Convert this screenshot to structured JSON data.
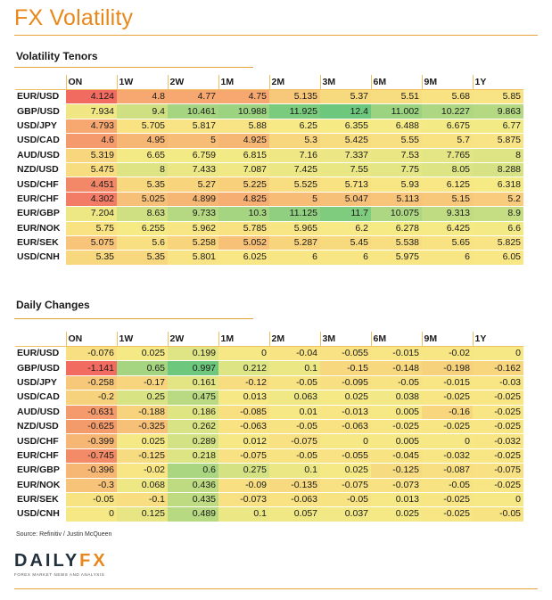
{
  "title": "FX Volatility",
  "tenors_section": {
    "heading": "Volatility Tenors",
    "columns": [
      "",
      "ON",
      "1W",
      "2W",
      "1M",
      "2M",
      "3M",
      "6M",
      "9M",
      "1Y"
    ],
    "rows": [
      {
        "pair": "EUR/USD",
        "values": [
          "4.124",
          "4.8",
          "4.77",
          "4.75",
          "5.135",
          "5.37",
          "5.51",
          "5.68",
          "5.85"
        ],
        "colors": [
          "#f26b60",
          "#f6a870",
          "#f6a870",
          "#f6a870",
          "#f7c87a",
          "#f8da7e",
          "#f8dc80",
          "#f8e282",
          "#f8e484"
        ]
      },
      {
        "pair": "GBP/USD",
        "values": [
          "7.934",
          "9.4",
          "10.461",
          "10.988",
          "11.925",
          "12.4",
          "11.002",
          "10.227",
          "9.863"
        ],
        "colors": [
          "#f0e684",
          "#cfe083",
          "#a6d581",
          "#9bd380",
          "#7acb7e",
          "#6dc77d",
          "#9bd380",
          "#add782",
          "#b5d982"
        ]
      },
      {
        "pair": "USD/JPY",
        "values": [
          "4.793",
          "5.705",
          "5.817",
          "5.88",
          "6.25",
          "6.355",
          "6.488",
          "6.675",
          "6.77"
        ],
        "colors": [
          "#f6a870",
          "#f8e282",
          "#f8e484",
          "#f8e484",
          "#f7e985",
          "#f6ea85",
          "#f5ea85",
          "#f3ea85",
          "#f2ea85"
        ]
      },
      {
        "pair": "USD/CAD",
        "values": [
          "4.6",
          "4.95",
          "5",
          "4.925",
          "5.3",
          "5.425",
          "5.55",
          "5.7",
          "5.875"
        ],
        "colors": [
          "#f59a6c",
          "#f6b674",
          "#f7bc76",
          "#f6b674",
          "#f8d67e",
          "#f8dc80",
          "#f8e082",
          "#f8e282",
          "#f8e484"
        ]
      },
      {
        "pair": "AUD/USD",
        "values": [
          "5.319",
          "6.65",
          "6.759",
          "6.815",
          "7.16",
          "7.337",
          "7.53",
          "7.765",
          "8"
        ],
        "colors": [
          "#f8d67e",
          "#f3ea85",
          "#f2ea85",
          "#f2ea85",
          "#eee784",
          "#ece784",
          "#eae684",
          "#e4e584",
          "#dee484"
        ]
      },
      {
        "pair": "NZD/USD",
        "values": [
          "5.475",
          "8",
          "7.433",
          "7.087",
          "7.425",
          "7.55",
          "7.75",
          "8.05",
          "8.288"
        ],
        "colors": [
          "#f8dc80",
          "#dee484",
          "#ebe784",
          "#efe884",
          "#ebe784",
          "#e9e684",
          "#e4e584",
          "#dde484",
          "#d6e284"
        ]
      },
      {
        "pair": "USD/CHF",
        "values": [
          "4.451",
          "5.35",
          "5.27",
          "5.225",
          "5.525",
          "5.713",
          "5.93",
          "6.125",
          "6.318"
        ],
        "colors": [
          "#f38868",
          "#f8d87e",
          "#f8d47c",
          "#f8d07c",
          "#f8de80",
          "#f8e282",
          "#f8e584",
          "#f8e784",
          "#f6ea85"
        ]
      },
      {
        "pair": "EUR/CHF",
        "values": [
          "4.302",
          "5.025",
          "4.899",
          "4.825",
          "5",
          "5.047",
          "5.113",
          "5.15",
          "5.2"
        ],
        "colors": [
          "#f27c65",
          "#f7c078",
          "#f6b674",
          "#f6ae72",
          "#f7bc76",
          "#f7c078",
          "#f7c47a",
          "#f7c87a",
          "#f8cc7c"
        ]
      },
      {
        "pair": "EUR/GBP",
        "values": [
          "7.204",
          "8.63",
          "9.733",
          "10.3",
          "11.125",
          "11.7",
          "10.075",
          "9.313",
          "8.9"
        ],
        "colors": [
          "#ede784",
          "#cfe083",
          "#b5d982",
          "#a6d581",
          "#8fcf7f",
          "#7fcc7e",
          "#add782",
          "#bfdc83",
          "#c6de83"
        ]
      },
      {
        "pair": "EUR/NOK",
        "values": [
          "5.75",
          "6.255",
          "5.962",
          "5.785",
          "5.965",
          "6.2",
          "6.278",
          "6.425",
          "6.6"
        ],
        "colors": [
          "#f8e282",
          "#f6ea85",
          "#f8e684",
          "#f8e282",
          "#f8e684",
          "#f7e985",
          "#f6ea85",
          "#f5ea85",
          "#f3ea85"
        ]
      },
      {
        "pair": "EUR/SEK",
        "values": [
          "5.075",
          "5.6",
          "5.258",
          "5.052",
          "5.287",
          "5.45",
          "5.538",
          "5.65",
          "5.825"
        ],
        "colors": [
          "#f7c47a",
          "#f8e082",
          "#f8d47c",
          "#f7c278",
          "#f8d47c",
          "#f8da7e",
          "#f8de80",
          "#f8e282",
          "#f8e484"
        ]
      },
      {
        "pair": "USD/CNH",
        "values": [
          "5.35",
          "5.35",
          "5.801",
          "6.025",
          "6",
          "6",
          "5.975",
          "6",
          "6.05"
        ],
        "colors": [
          "#f8d87e",
          "#f8d87e",
          "#f8e484",
          "#f8e784",
          "#f8e684",
          "#f8e684",
          "#f8e684",
          "#f8e684",
          "#f8e784"
        ]
      }
    ]
  },
  "changes_section": {
    "heading": "Daily Changes",
    "columns": [
      "",
      "ON",
      "1W",
      "2W",
      "1M",
      "2M",
      "3M",
      "6M",
      "9M",
      "1Y"
    ],
    "rows": [
      {
        "pair": "EUR/USD",
        "values": [
          "-0.076",
          "0.025",
          "0.199",
          "0",
          "-0.04",
          "-0.055",
          "-0.015",
          "-0.02",
          "0"
        ],
        "colors": [
          "#f8e082",
          "#f4e985",
          "#dfe484",
          "#f6e885",
          "#f8e483",
          "#f8e283",
          "#f8e684",
          "#f8e584",
          "#f6e885"
        ]
      },
      {
        "pair": "GBP/USD",
        "values": [
          "-1.141",
          "0.65",
          "0.997",
          "0.212",
          "0.1",
          "-0.15",
          "-0.148",
          "-0.198",
          "-0.162"
        ],
        "colors": [
          "#f26b60",
          "#a6d581",
          "#6dc77d",
          "#dde484",
          "#ebe784",
          "#f7d87f",
          "#f7d87f",
          "#f7d27d",
          "#f7d67e"
        ]
      },
      {
        "pair": "USD/JPY",
        "values": [
          "-0.258",
          "-0.17",
          "0.161",
          "-0.12",
          "-0.05",
          "-0.095",
          "-0.05",
          "-0.015",
          "-0.03"
        ],
        "colors": [
          "#f7c87a",
          "#f7d57e",
          "#e3e584",
          "#f8dc80",
          "#f8e383",
          "#f8df81",
          "#f8e383",
          "#f8e684",
          "#f8e584"
        ]
      },
      {
        "pair": "USD/CAD",
        "values": [
          "-0.2",
          "0.25",
          "0.475",
          "0.013",
          "0.063",
          "0.025",
          "0.038",
          "-0.025",
          "-0.025"
        ],
        "colors": [
          "#f7d27d",
          "#d8e384",
          "#b9da82",
          "#f5e885",
          "#efe884",
          "#f4e985",
          "#f2e885",
          "#f8e584",
          "#f8e584"
        ]
      },
      {
        "pair": "AUD/USD",
        "values": [
          "-0.631",
          "-0.188",
          "0.186",
          "-0.085",
          "0.01",
          "-0.013",
          "0.005",
          "-0.16",
          "-0.025"
        ],
        "colors": [
          "#f49a6c",
          "#f7d37d",
          "#e0e584",
          "#f8e081",
          "#f5e885",
          "#f8e684",
          "#f6e885",
          "#f7d67e",
          "#f8e584"
        ]
      },
      {
        "pair": "NZD/USD",
        "values": [
          "-0.625",
          "-0.325",
          "0.262",
          "-0.063",
          "-0.05",
          "-0.063",
          "-0.025",
          "-0.025",
          "-0.025"
        ],
        "colors": [
          "#f49b6c",
          "#f7c078",
          "#d7e384",
          "#f8e282",
          "#f8e383",
          "#f8e282",
          "#f8e584",
          "#f8e584",
          "#f8e584"
        ]
      },
      {
        "pair": "USD/CHF",
        "values": [
          "-0.399",
          "0.025",
          "0.289",
          "0.012",
          "-0.075",
          "0",
          "0.005",
          "0",
          "-0.032"
        ],
        "colors": [
          "#f6b674",
          "#f4e985",
          "#d3e284",
          "#f5e885",
          "#f8e182",
          "#f6e885",
          "#f6e885",
          "#f6e885",
          "#f8e584"
        ]
      },
      {
        "pair": "EUR/CHF",
        "values": [
          "-0.745",
          "-0.125",
          "0.218",
          "-0.075",
          "-0.05",
          "-0.055",
          "-0.045",
          "-0.032",
          "-0.025"
        ],
        "colors": [
          "#f38b68",
          "#f7db80",
          "#dce484",
          "#f8e182",
          "#f8e383",
          "#f8e283",
          "#f8e383",
          "#f8e584",
          "#f8e584"
        ]
      },
      {
        "pair": "EUR/GBP",
        "values": [
          "-0.396",
          "-0.02",
          "0.6",
          "0.275",
          "0.1",
          "0.025",
          "-0.125",
          "-0.087",
          "-0.075"
        ],
        "colors": [
          "#f6b674",
          "#f8e584",
          "#aad681",
          "#d5e284",
          "#ebe784",
          "#f4e985",
          "#f7db80",
          "#f8df81",
          "#f8e182"
        ]
      },
      {
        "pair": "EUR/NOK",
        "values": [
          "-0.3",
          "0.068",
          "0.436",
          "-0.09",
          "-0.135",
          "-0.075",
          "-0.073",
          "-0.05",
          "-0.025"
        ],
        "colors": [
          "#f7c379",
          "#eee884",
          "#bedb82",
          "#f8df81",
          "#f7da7f",
          "#f8e182",
          "#f8e182",
          "#f8e383",
          "#f8e584"
        ]
      },
      {
        "pair": "EUR/SEK",
        "values": [
          "-0.05",
          "-0.1",
          "0.435",
          "-0.073",
          "-0.063",
          "-0.05",
          "0.013",
          "-0.025",
          "0"
        ],
        "colors": [
          "#f8e383",
          "#f8de80",
          "#bedb82",
          "#f8e182",
          "#f8e282",
          "#f8e383",
          "#f5e885",
          "#f8e584",
          "#f6e885"
        ]
      },
      {
        "pair": "USD/CNH",
        "values": [
          "0",
          "0.125",
          "0.489",
          "0.1",
          "0.057",
          "0.037",
          "0.025",
          "-0.025",
          "-0.05"
        ],
        "colors": [
          "#f6e885",
          "#e8e684",
          "#b7d982",
          "#ebe784",
          "#f0e884",
          "#f2e885",
          "#f4e985",
          "#f8e584",
          "#f8e383"
        ]
      }
    ]
  },
  "source": "Source: Refinitiv / Justin McQueen",
  "logo": {
    "word_main": "DAILY",
    "word_accent": "FX",
    "tagline": "FOREX MARKET NEWS AND ANALYSIS"
  }
}
